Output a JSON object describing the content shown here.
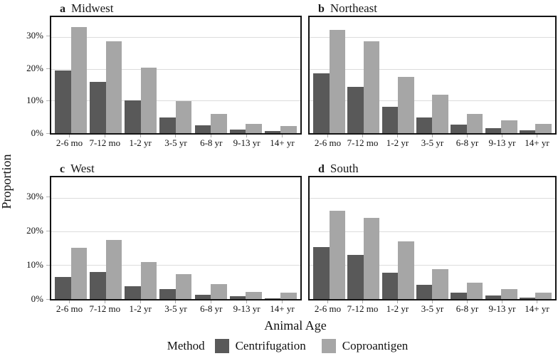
{
  "figure": {
    "ylabel": "Proportion",
    "xlabel": "Animal Age",
    "legend": {
      "title": "Method",
      "items": [
        {
          "label": "Centrifugation",
          "color": "#595959"
        },
        {
          "label": "Coproantigen",
          "color": "#a6a6a6"
        }
      ]
    },
    "colors": {
      "centrifugation_bar": "#595959",
      "coproantigen_bar": "#a6a6a6",
      "gridline": "#dcdcdc",
      "frame": "#141414",
      "background": "#ffffff"
    }
  },
  "chart_data": [
    {
      "type": "bar",
      "panel_letter": "a",
      "title": "Midwest",
      "categories": [
        "2-6 mo",
        "7-12 mo",
        "1-2 yr",
        "3-5 yr",
        "6-8 yr",
        "9-13 yr",
        "14+ yr"
      ],
      "series": [
        {
          "name": "Centrifugation",
          "values": [
            19.7,
            16.1,
            10.2,
            4.9,
            2.5,
            1.2,
            0.7
          ]
        },
        {
          "name": "Coproantigen",
          "values": [
            33.4,
            28.9,
            20.6,
            10.0,
            6.0,
            2.9,
            2.2
          ]
        }
      ],
      "ylabel": "Proportion",
      "xlabel": "Animal Age",
      "yticks": [
        "0%",
        "10%",
        "20%",
        "30%"
      ],
      "ytick_values": [
        0,
        10,
        20,
        30
      ],
      "ylim": [
        0,
        36.5
      ],
      "grid": true,
      "show_y_axis": true
    },
    {
      "type": "bar",
      "panel_letter": "b",
      "title": "Northeast",
      "categories": [
        "2-6 mo",
        "7-12 mo",
        "1-2 yr",
        "3-5 yr",
        "6-8 yr",
        "9-13 yr",
        "14+ yr"
      ],
      "series": [
        {
          "name": "Centrifugation",
          "values": [
            18.9,
            14.5,
            8.3,
            4.9,
            2.8,
            1.5,
            1.0
          ]
        },
        {
          "name": "Coproantigen",
          "values": [
            32.5,
            29.0,
            17.8,
            12.0,
            6.0,
            4.0,
            3.0
          ]
        }
      ],
      "ylabel": "Proportion",
      "xlabel": "Animal Age",
      "yticks": [
        "0%",
        "10%",
        "20%",
        "30%"
      ],
      "ytick_values": [
        0,
        10,
        20,
        30
      ],
      "ylim": [
        0,
        36.5
      ],
      "grid": true,
      "show_y_axis": false
    },
    {
      "type": "bar",
      "panel_letter": "c",
      "title": "West",
      "categories": [
        "2-6 mo",
        "7-12 mo",
        "1-2 yr",
        "3-5 yr",
        "6-8 yr",
        "9-13 yr",
        "14+ yr"
      ],
      "series": [
        {
          "name": "Centrifugation",
          "values": [
            6.6,
            8.1,
            3.8,
            3.0,
            1.3,
            0.8,
            0.3
          ]
        },
        {
          "name": "Coproantigen",
          "values": [
            15.3,
            17.7,
            11.2,
            7.5,
            4.5,
            2.2,
            1.9
          ]
        }
      ],
      "ylabel": "Proportion",
      "xlabel": "Animal Age",
      "yticks": [
        "0%",
        "10%",
        "20%",
        "30%"
      ],
      "ytick_values": [
        0,
        10,
        20,
        30
      ],
      "ylim": [
        0,
        36.5
      ],
      "grid": true,
      "show_y_axis": true
    },
    {
      "type": "bar",
      "panel_letter": "d",
      "title": "South",
      "categories": [
        "2-6 mo",
        "7-12 mo",
        "1-2 yr",
        "3-5 yr",
        "6-8 yr",
        "9-13 yr",
        "14+ yr"
      ],
      "series": [
        {
          "name": "Centrifugation",
          "values": [
            15.5,
            13.2,
            7.8,
            4.2,
            2.0,
            1.1,
            0.5
          ]
        },
        {
          "name": "Coproantigen",
          "values": [
            26.5,
            24.3,
            17.3,
            9.0,
            4.9,
            2.9,
            2.0
          ]
        }
      ],
      "ylabel": "Proportion",
      "xlabel": "Animal Age",
      "yticks": [
        "0%",
        "10%",
        "20%",
        "30%"
      ],
      "ytick_values": [
        0,
        10,
        20,
        30
      ],
      "ylim": [
        0,
        36.5
      ],
      "grid": true,
      "show_y_axis": false
    }
  ]
}
